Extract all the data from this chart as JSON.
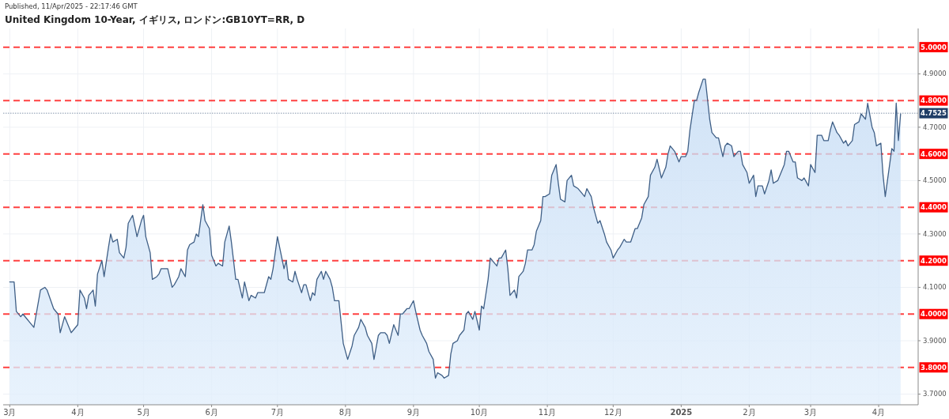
{
  "chart_data": {
    "type": "area",
    "title": "United Kingdom 10-Year, イギリス, ロンドン:GB10YT=RR, D",
    "annotations": [
      "Published, 11/Apr/2025 - 22:17:46 GMT"
    ],
    "x": [
      "2024-03-01",
      "2024-03-03",
      "2024-03-04",
      "2024-03-06",
      "2024-03-07",
      "2024-03-09",
      "2024-03-10",
      "2024-03-12",
      "2024-03-15",
      "2024-03-17",
      "2024-03-18",
      "2024-03-21",
      "2024-03-23",
      "2024-03-24",
      "2024-03-26",
      "2024-03-27",
      "2024-03-29",
      "2024-03-30",
      "2024-04-01",
      "2024-04-02",
      "2024-04-04",
      "2024-04-05",
      "2024-04-06",
      "2024-04-08",
      "2024-04-09",
      "2024-04-10",
      "2024-04-12",
      "2024-04-13",
      "2024-04-15",
      "2024-04-16",
      "2024-04-17",
      "2024-04-19",
      "2024-04-20",
      "2024-04-22",
      "2024-04-23",
      "2024-04-24",
      "2024-04-26",
      "2024-04-28",
      "2024-04-30",
      "2024-05-01",
      "2024-05-02",
      "2024-05-04",
      "2024-05-05",
      "2024-05-07",
      "2024-05-08",
      "2024-05-09",
      "2024-05-11",
      "2024-05-12",
      "2024-05-14",
      "2024-05-15",
      "2024-05-17",
      "2024-05-18",
      "2024-05-20",
      "2024-05-21",
      "2024-05-22",
      "2024-05-24",
      "2024-05-25",
      "2024-05-26",
      "2024-05-28",
      "2024-05-29",
      "2024-05-31",
      "2024-06-01",
      "2024-06-03",
      "2024-06-04",
      "2024-06-06",
      "2024-06-07",
      "2024-06-09",
      "2024-06-10",
      "2024-06-12",
      "2024-06-13",
      "2024-06-15",
      "2024-06-16",
      "2024-06-18",
      "2024-06-19",
      "2024-06-21",
      "2024-06-22",
      "2024-06-24",
      "2024-06-25",
      "2024-06-27",
      "2024-06-28",
      "2024-06-29",
      "2024-07-01",
      "2024-07-02",
      "2024-07-04",
      "2024-07-05",
      "2024-07-06",
      "2024-07-08",
      "2024-07-09",
      "2024-07-10",
      "2024-07-12",
      "2024-07-13",
      "2024-07-14",
      "2024-07-16",
      "2024-07-17",
      "2024-07-18",
      "2024-07-19",
      "2024-07-21",
      "2024-07-22",
      "2024-07-23",
      "2024-07-25",
      "2024-07-26",
      "2024-07-27",
      "2024-07-29",
      "2024-07-30",
      "2024-07-31",
      "2024-08-02",
      "2024-08-04",
      "2024-08-05",
      "2024-08-07",
      "2024-08-08",
      "2024-08-10",
      "2024-08-11",
      "2024-08-13",
      "2024-08-14",
      "2024-08-16",
      "2024-08-17",
      "2024-08-19",
      "2024-08-20",
      "2024-08-21",
      "2024-08-23",
      "2024-08-25",
      "2024-08-26",
      "2024-08-27",
      "2024-08-29",
      "2024-08-30",
      "2024-09-01",
      "2024-09-02",
      "2024-09-04",
      "2024-09-05",
      "2024-09-07",
      "2024-09-08",
      "2024-09-10",
      "2024-09-11",
      "2024-09-12",
      "2024-09-14",
      "2024-09-15",
      "2024-09-17",
      "2024-09-18",
      "2024-09-19",
      "2024-09-21",
      "2024-09-22",
      "2024-09-24",
      "2024-09-25",
      "2024-09-26",
      "2024-09-28",
      "2024-09-29",
      "2024-10-01",
      "2024-10-02",
      "2024-10-03",
      "2024-10-05",
      "2024-10-06",
      "2024-10-08",
      "2024-10-09",
      "2024-10-10",
      "2024-10-11",
      "2024-10-13",
      "2024-10-14",
      "2024-10-15",
      "2024-10-17",
      "2024-10-18",
      "2024-10-19",
      "2024-10-21",
      "2024-10-22",
      "2024-10-23",
      "2024-10-25",
      "2024-10-26",
      "2024-10-27",
      "2024-10-29",
      "2024-10-30",
      "2024-10-31",
      "2024-11-02",
      "2024-11-03",
      "2024-11-05",
      "2024-11-06",
      "2024-11-07",
      "2024-11-09",
      "2024-11-10",
      "2024-11-12",
      "2024-11-13",
      "2024-11-15",
      "2024-11-16",
      "2024-11-18",
      "2024-11-19",
      "2024-11-21",
      "2024-11-22",
      "2024-11-24",
      "2024-11-25",
      "2024-11-27",
      "2024-11-28",
      "2024-11-30",
      "2024-12-01",
      "2024-12-03",
      "2024-12-04",
      "2024-12-06",
      "2024-12-07",
      "2024-12-09",
      "2024-12-11",
      "2024-12-12",
      "2024-12-14",
      "2024-12-15",
      "2024-12-17",
      "2024-12-18",
      "2024-12-20",
      "2024-12-21",
      "2024-12-23",
      "2024-12-25",
      "2024-12-26",
      "2024-12-27",
      "2024-12-29",
      "2024-12-31",
      "2025-01-01",
      "2025-01-03",
      "2025-01-04",
      "2025-01-05",
      "2025-01-07",
      "2025-01-08",
      "2025-01-09",
      "2025-01-11",
      "2025-01-12",
      "2025-01-14",
      "2025-01-15",
      "2025-01-17",
      "2025-01-18",
      "2025-01-20",
      "2025-01-21",
      "2025-01-22",
      "2025-01-24",
      "2025-01-25",
      "2025-01-27",
      "2025-01-28",
      "2025-01-29",
      "2025-01-31",
      "2025-02-01",
      "2025-02-03",
      "2025-02-04",
      "2025-02-05",
      "2025-02-07",
      "2025-02-08",
      "2025-02-10",
      "2025-02-11",
      "2025-02-12",
      "2025-02-14",
      "2025-02-15",
      "2025-02-17",
      "2025-02-18",
      "2025-02-19",
      "2025-02-21",
      "2025-02-22",
      "2025-02-23",
      "2025-02-25",
      "2025-02-26",
      "2025-02-28",
      "2025-03-01",
      "2025-03-03",
      "2025-03-04",
      "2025-03-06",
      "2025-03-07",
      "2025-03-09",
      "2025-03-10",
      "2025-03-11",
      "2025-03-13",
      "2025-03-14",
      "2025-03-16",
      "2025-03-17",
      "2025-03-18",
      "2025-03-20",
      "2025-03-21",
      "2025-03-23",
      "2025-03-24",
      "2025-03-26",
      "2025-03-27",
      "2025-03-29",
      "2025-03-30",
      "2025-03-31",
      "2025-04-02",
      "2025-04-03",
      "2025-04-04",
      "2025-04-07",
      "2025-04-08",
      "2025-04-09",
      "2025-04-10",
      "2025-04-11"
    ],
    "series": [
      {
        "color": "#3f5f86",
        "values": [
          4.12,
          4.12,
          4.01,
          3.99,
          4.0,
          3.98,
          3.97,
          3.95,
          4.09,
          4.1,
          4.09,
          4.02,
          4.0,
          3.93,
          3.99,
          3.97,
          3.93,
          3.94,
          3.96,
          4.09,
          4.06,
          4.02,
          4.07,
          4.09,
          4.03,
          4.15,
          4.2,
          4.14,
          4.25,
          4.3,
          4.27,
          4.28,
          4.23,
          4.21,
          4.25,
          4.34,
          4.37,
          4.29,
          4.35,
          4.37,
          4.29,
          4.23,
          4.13,
          4.14,
          4.15,
          4.17,
          4.17,
          4.17,
          4.1,
          4.11,
          4.14,
          4.17,
          4.14,
          4.24,
          4.26,
          4.27,
          4.3,
          4.29,
          4.41,
          4.35,
          4.32,
          4.22,
          4.18,
          4.19,
          4.18,
          4.27,
          4.33,
          4.27,
          4.13,
          4.13,
          4.06,
          4.12,
          4.05,
          4.07,
          4.06,
          4.08,
          4.08,
          4.08,
          4.14,
          4.13,
          4.17,
          4.29,
          4.25,
          4.17,
          4.2,
          4.13,
          4.12,
          4.16,
          4.13,
          4.08,
          4.11,
          4.11,
          4.05,
          4.08,
          4.07,
          4.13,
          4.16,
          4.13,
          4.16,
          4.13,
          4.1,
          4.05,
          4.05,
          3.97,
          3.89,
          3.83,
          3.88,
          3.92,
          3.95,
          3.98,
          3.95,
          3.92,
          3.89,
          3.83,
          3.92,
          3.93,
          3.93,
          3.92,
          3.89,
          3.96,
          3.92,
          4.0,
          4.0,
          4.02,
          4.02,
          4.05,
          4.01,
          3.94,
          3.92,
          3.89,
          3.86,
          3.83,
          3.76,
          3.78,
          3.77,
          3.76,
          3.77,
          3.85,
          3.89,
          3.9,
          3.92,
          3.94,
          4.0,
          4.01,
          3.98,
          4.01,
          3.94,
          4.03,
          4.02,
          4.13,
          4.21,
          4.19,
          4.18,
          4.21,
          4.21,
          4.24,
          4.17,
          4.07,
          4.09,
          4.06,
          4.14,
          4.16,
          4.19,
          4.24,
          4.24,
          4.26,
          4.31,
          4.35,
          4.44,
          4.44,
          4.45,
          4.52,
          4.56,
          4.49,
          4.43,
          4.42,
          4.5,
          4.52,
          4.48,
          4.47,
          4.46,
          4.44,
          4.47,
          4.44,
          4.4,
          4.34,
          4.35,
          4.3,
          4.27,
          4.24,
          4.21,
          4.24,
          4.25,
          4.28,
          4.27,
          4.27,
          4.32,
          4.32,
          4.36,
          4.41,
          4.44,
          4.52,
          4.55,
          4.58,
          4.51,
          4.55,
          4.6,
          4.63,
          4.61,
          4.57,
          4.59,
          4.59,
          4.61,
          4.69,
          4.8,
          4.8,
          4.83,
          4.88,
          4.88,
          4.73,
          4.68,
          4.66,
          4.66,
          4.59,
          4.63,
          4.64,
          4.63,
          4.59,
          4.61,
          4.61,
          4.56,
          4.53,
          4.49,
          4.52,
          4.44,
          4.48,
          4.48,
          4.45,
          4.5,
          4.54,
          4.49,
          4.5,
          4.52,
          4.56,
          4.61,
          4.61,
          4.57,
          4.57,
          4.51,
          4.5,
          4.51,
          4.48,
          4.56,
          4.53,
          4.67,
          4.67,
          4.65,
          4.65,
          4.69,
          4.72,
          4.68,
          4.67,
          4.64,
          4.65,
          4.63,
          4.65,
          4.71,
          4.72,
          4.75,
          4.73,
          4.79,
          4.7,
          4.68,
          4.63,
          4.64,
          4.52,
          4.44,
          4.62,
          4.61,
          4.79,
          4.65,
          4.75
        ]
      }
    ],
    "xlim": [
      "2024-02-27",
      "2025-04-19"
    ],
    "xticks": [
      {
        "value": "2024-03-01",
        "label": "3月"
      },
      {
        "value": "2024-04-01",
        "label": "4月"
      },
      {
        "value": "2024-05-01",
        "label": "5月"
      },
      {
        "value": "2024-06-01",
        "label": "6月"
      },
      {
        "value": "2024-07-01",
        "label": "7月"
      },
      {
        "value": "2024-08-01",
        "label": "8月"
      },
      {
        "value": "2024-09-01",
        "label": "9月"
      },
      {
        "value": "2024-10-01",
        "label": "10月"
      },
      {
        "value": "2024-11-01",
        "label": "11月"
      },
      {
        "value": "2024-12-01",
        "label": "12月"
      },
      {
        "value": "2025-01-01",
        "label": "2025"
      },
      {
        "value": "2025-02-01",
        "label": "2月"
      },
      {
        "value": "2025-03-01",
        "label": "3月"
      },
      {
        "value": "2025-04-01",
        "label": "4月"
      }
    ],
    "ylim": [
      3.66,
      5.07
    ],
    "yticks": [
      {
        "value": 3.7,
        "label": "3.7000"
      },
      {
        "value": 3.9,
        "label": "3.9000"
      },
      {
        "value": 4.1,
        "label": "4.1000"
      },
      {
        "value": 4.3,
        "label": "4.3000"
      },
      {
        "value": 4.5,
        "label": "4.5000"
      },
      {
        "value": 4.7,
        "label": "4.7000"
      },
      {
        "value": 4.9,
        "label": "4.9000"
      }
    ],
    "ref_lines": [
      {
        "axis": "y",
        "value": 5.0,
        "label": "5.0000",
        "color": "#ff0000",
        "line_style": "dashed"
      },
      {
        "axis": "y",
        "value": 4.8,
        "label": "4.8000",
        "color": "#ff0000",
        "line_style": "dashed"
      },
      {
        "axis": "y",
        "value": 4.6,
        "label": "4.6000",
        "color": "#ff0000",
        "line_style": "dashed"
      },
      {
        "axis": "y",
        "value": 4.4,
        "label": "4.4000",
        "color": "#ff0000",
        "line_style": "dashed"
      },
      {
        "axis": "y",
        "value": 4.2,
        "label": "4.2000",
        "color": "#ff0000",
        "line_style": "dashed"
      },
      {
        "axis": "y",
        "value": 4.0,
        "label": "4.0000",
        "color": "#ff0000",
        "line_style": "dashed"
      },
      {
        "axis": "y",
        "value": 3.8,
        "label": "3.8000",
        "color": "#ff0000",
        "line_style": "dashed"
      },
      {
        "axis": "y",
        "value": 4.7525,
        "label": "4.7525",
        "color": "#1f3d66",
        "line_style": "dotted"
      }
    ],
    "grid": true
  }
}
